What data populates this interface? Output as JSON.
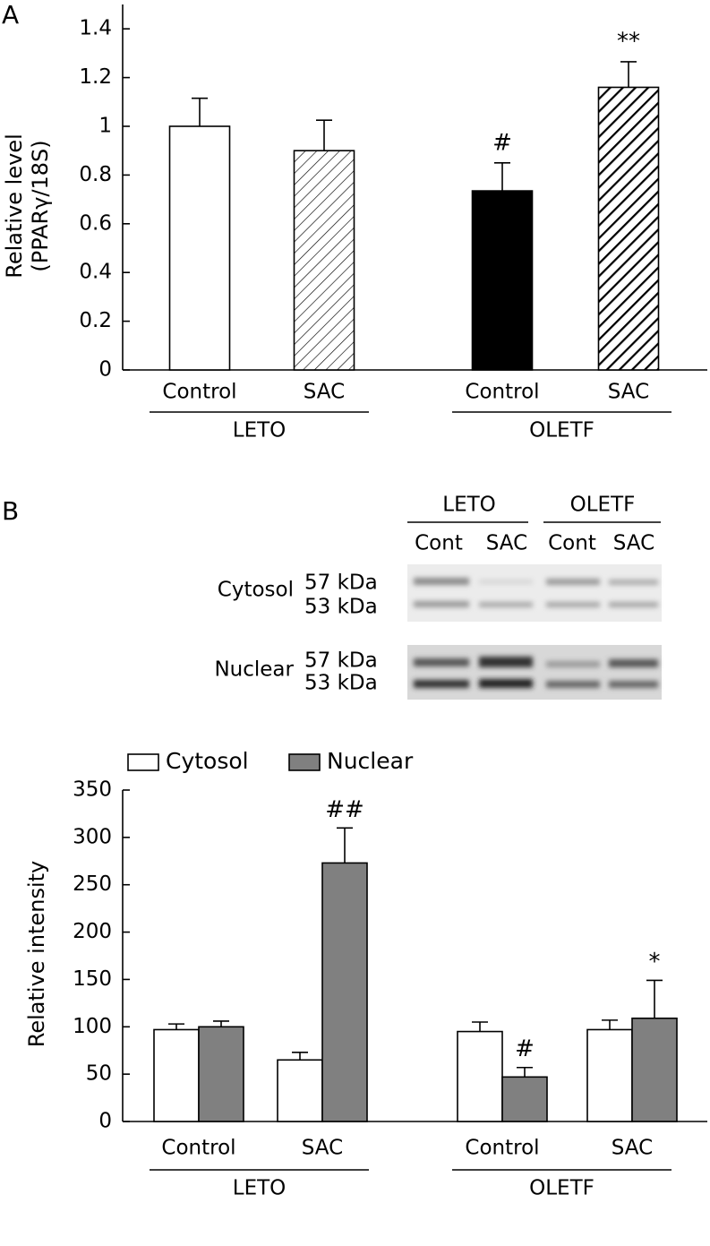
{
  "panel_labels": [
    "A",
    "B"
  ],
  "blot": {
    "groups": [
      "LETO",
      "OLETF"
    ],
    "lanes": [
      "Cont",
      "SAC",
      "Cont",
      "SAC"
    ],
    "rows": [
      {
        "name": "Cytosol",
        "bands": [
          "57 kDa",
          "53 kDa"
        ]
      },
      {
        "name": "Nuclear",
        "bands": [
          "57 kDa",
          "53 kDa"
        ]
      }
    ]
  },
  "chart_data": [
    {
      "type": "bar",
      "ylabel": [
        "Relative level",
        "(PPARγ/18S)"
      ],
      "categories": [
        "Control",
        "SAC",
        "Control",
        "SAC"
      ],
      "groups": [
        "LETO",
        "OLETF"
      ],
      "values": [
        1.0,
        0.9,
        0.735,
        1.16
      ],
      "errors": [
        0.115,
        0.125,
        0.115,
        0.105
      ],
      "annotations": [
        null,
        null,
        "#",
        "**"
      ],
      "fills": [
        "white",
        "hatch-thin",
        "black",
        "hatch-thick"
      ],
      "ylim": [
        0,
        1.5
      ],
      "yticks": [
        0,
        0.2,
        0.4,
        0.6,
        0.8,
        1,
        1.2,
        1.4
      ]
    },
    {
      "type": "grouped_bar",
      "ylabel": "Relative intensity",
      "categories": [
        "Control",
        "SAC",
        "Control",
        "SAC"
      ],
      "groups": [
        "LETO",
        "OLETF"
      ],
      "series": [
        {
          "name": "Cytosol",
          "color": "#ffffff",
          "values": [
            97,
            65,
            95,
            97
          ],
          "errors": [
            6,
            8,
            10,
            10
          ]
        },
        {
          "name": "Nuclear",
          "color": "#808080",
          "values": [
            100,
            273,
            47,
            109
          ],
          "errors": [
            6,
            37,
            10,
            40
          ],
          "annotations": [
            null,
            "##",
            "#",
            "*"
          ]
        }
      ],
      "legend": "top-left",
      "ylim": [
        0,
        350
      ],
      "yticks": [
        0,
        50,
        100,
        150,
        200,
        250,
        300,
        350
      ]
    }
  ]
}
